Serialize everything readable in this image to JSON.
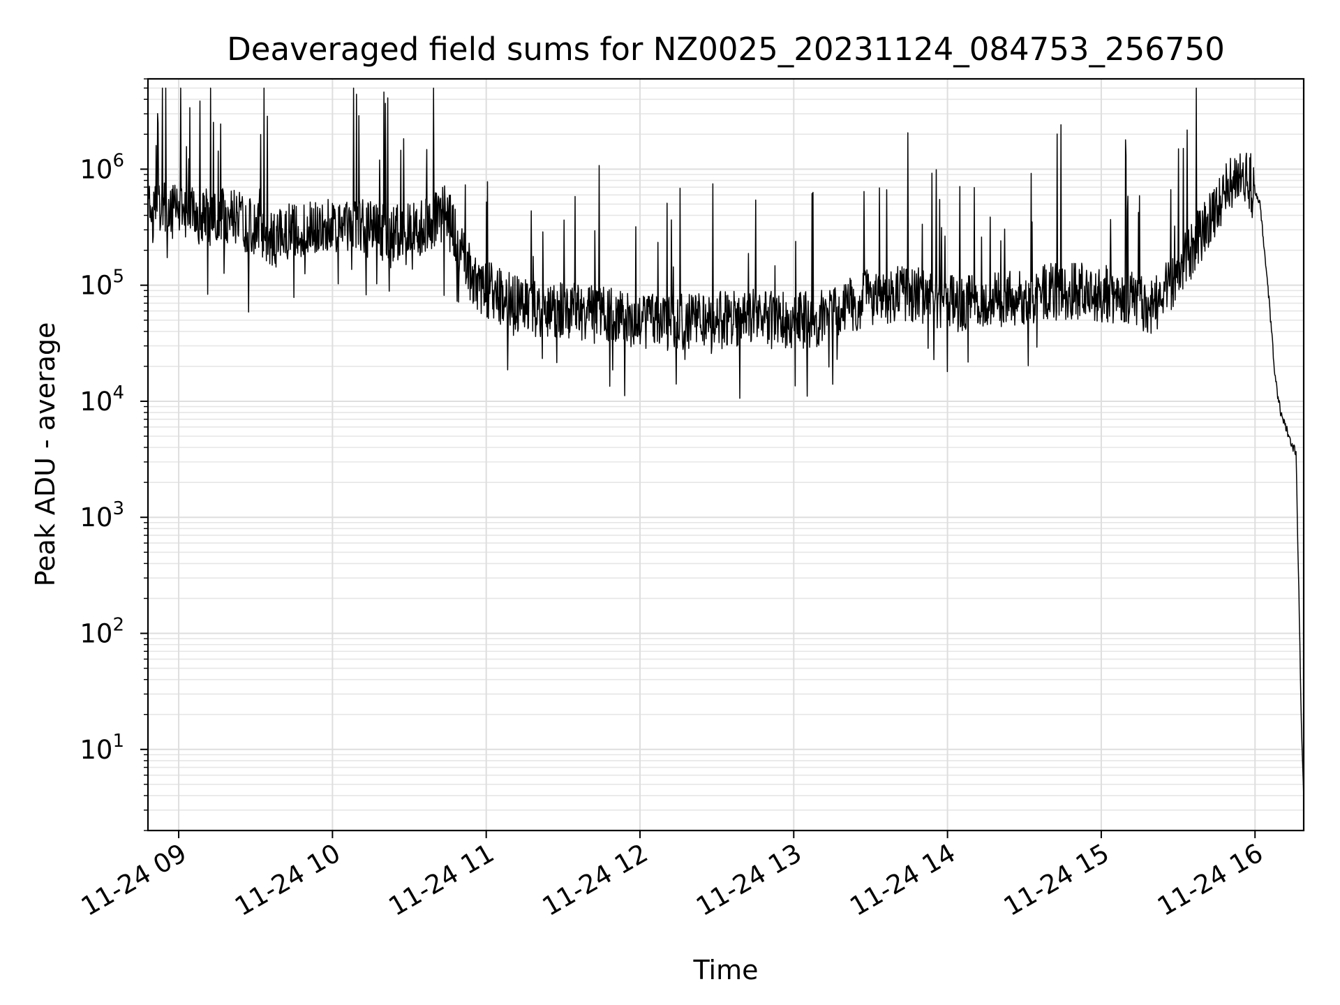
{
  "chart_data": {
    "type": "line",
    "title": "Deaveraged field sums for NZ0025_20231124_084753_256750",
    "xlabel": "Time",
    "ylabel": "Peak ADU - average",
    "yscale": "log",
    "ylim": [
      2,
      6000000
    ],
    "xlim": [
      "2023-11-24 08:48",
      "2023-11-24 16:19"
    ],
    "grid": true,
    "legend": "none",
    "line_color": "#000000",
    "x_ticks": [
      "2023-11-24 09:00",
      "2023-11-24 10:00",
      "2023-11-24 11:00",
      "2023-11-24 12:00",
      "2023-11-24 13:00",
      "2023-11-24 14:00",
      "2023-11-24 15:00",
      "2023-11-24 16:00"
    ],
    "x_tick_labels": [
      "11-24 09",
      "11-24 10",
      "11-24 11",
      "11-24 12",
      "11-24 13",
      "11-24 14",
      "11-24 15",
      "11-24 16"
    ],
    "y_ticks": [
      10,
      100,
      1000,
      10000,
      100000,
      1000000
    ],
    "y_tick_bases": [
      "10",
      "10",
      "10",
      "10",
      "10",
      "10"
    ],
    "y_tick_exponents": [
      "1",
      "2",
      "3",
      "4",
      "5",
      "6"
    ],
    "series": [
      {
        "x": [
          "2023-11-24 08:48",
          "2023-11-24 08:55",
          "2023-11-24 09:00",
          "2023-11-24 09:10",
          "2023-11-24 09:20",
          "2023-11-24 09:30",
          "2023-11-24 09:38",
          "2023-11-24 09:45",
          "2023-11-24 09:55",
          "2023-11-24 10:05",
          "2023-11-24 10:15",
          "2023-11-24 10:25",
          "2023-11-24 10:35",
          "2023-11-24 10:45",
          "2023-11-24 10:50",
          "2023-11-24 10:55",
          "2023-11-24 11:05",
          "2023-11-24 11:15",
          "2023-11-24 11:30",
          "2023-11-24 11:45",
          "2023-11-24 12:00",
          "2023-11-24 12:15",
          "2023-11-24 12:30",
          "2023-11-24 12:45",
          "2023-11-24 13:00",
          "2023-11-24 13:15",
          "2023-11-24 13:30",
          "2023-11-24 13:45",
          "2023-11-24 14:00",
          "2023-11-24 14:15",
          "2023-11-24 14:30",
          "2023-11-24 14:45",
          "2023-11-24 15:00",
          "2023-11-24 15:10",
          "2023-11-24 15:20",
          "2023-11-24 15:30",
          "2023-11-24 15:40",
          "2023-11-24 15:48",
          "2023-11-24 15:53",
          "2023-11-24 15:58",
          "2023-11-24 16:02",
          "2023-11-24 16:05",
          "2023-11-24 16:08",
          "2023-11-24 16:10",
          "2023-11-24 16:12",
          "2023-11-24 16:14",
          "2023-11-24 16:16",
          "2023-11-24 16:17",
          "2023-11-24 16:18",
          "2023-11-24 16:19"
        ],
        "values": [
          400000,
          450000,
          420000,
          380000,
          400000,
          300000,
          250000,
          300000,
          320000,
          330000,
          300000,
          280000,
          320000,
          420000,
          200000,
          110000,
          80000,
          65000,
          60000,
          55000,
          50000,
          48000,
          50000,
          52000,
          48000,
          55000,
          80000,
          85000,
          70000,
          70000,
          80000,
          90000,
          85000,
          80000,
          65000,
          130000,
          300000,
          600000,
          900000,
          800000,
          500000,
          100000,
          15000,
          8000,
          6000,
          4500,
          3500,
          300,
          20,
          4
        ]
      }
    ]
  }
}
